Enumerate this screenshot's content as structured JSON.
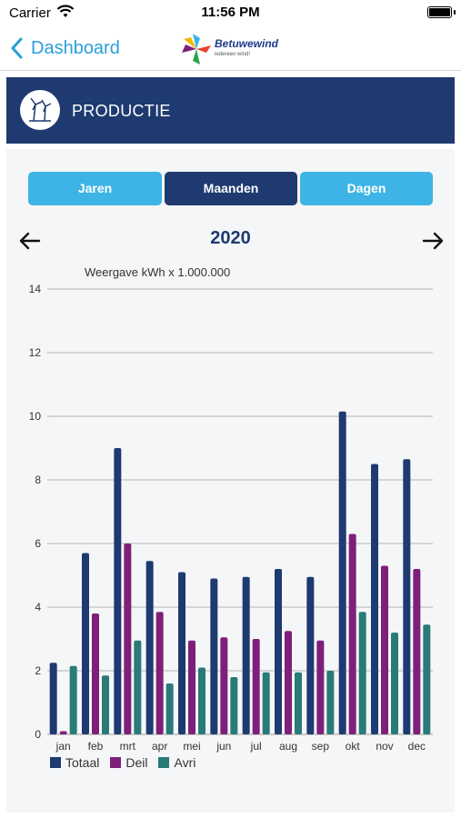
{
  "status": {
    "carrier": "Carrier",
    "time": "11:56 PM",
    "battery_level": 1.0
  },
  "nav": {
    "back_label": "Dashboard",
    "brand": {
      "name": "Betuwewind",
      "tagline": "iedereen wind!"
    }
  },
  "header": {
    "title": "PRODUCTIE",
    "icon": "wind-turbine-icon"
  },
  "tabs": [
    {
      "label": "Jaren",
      "selected": false
    },
    {
      "label": "Maanden",
      "selected": true
    },
    {
      "label": "Dagen",
      "selected": false
    }
  ],
  "period": {
    "year": "2020",
    "prev_icon": "arrow-left-icon",
    "next_icon": "arrow-right-icon"
  },
  "chart_note": "Weergave kWh x 1.000.000",
  "colors": {
    "totaal": "#1e3a70",
    "deil": "#7e1f7a",
    "avri": "#2a7a78",
    "accent": "#3eb4e6",
    "link": "#2a9fd8"
  },
  "chart_data": {
    "type": "bar",
    "categories": [
      "jan",
      "feb",
      "mrt",
      "apr",
      "mei",
      "jun",
      "jul",
      "aug",
      "sep",
      "okt",
      "nov",
      "dec"
    ],
    "series": [
      {
        "name": "Totaal",
        "values": [
          2.25,
          5.7,
          9.0,
          5.45,
          5.1,
          4.9,
          4.95,
          5.2,
          4.95,
          10.15,
          8.5,
          8.65
        ]
      },
      {
        "name": "Deil",
        "values": [
          0.1,
          3.8,
          6.0,
          3.85,
          2.95,
          3.05,
          3.0,
          3.25,
          2.95,
          6.3,
          5.3,
          5.2
        ]
      },
      {
        "name": "Avri",
        "values": [
          2.15,
          1.85,
          2.95,
          1.6,
          2.1,
          1.8,
          1.95,
          1.95,
          2.0,
          3.85,
          3.2,
          3.45
        ]
      }
    ],
    "ylim": [
      0,
      14
    ],
    "yticks": [
      "0",
      "2",
      "4",
      "6",
      "8",
      "10",
      "12",
      "14"
    ],
    "grid": true,
    "legend": "bottom-left"
  }
}
